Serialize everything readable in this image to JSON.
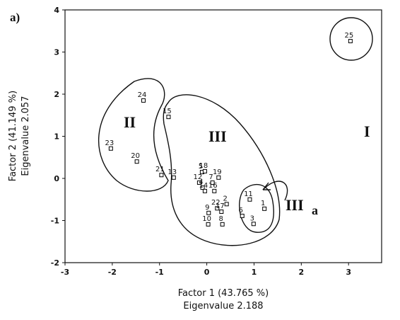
{
  "chart_data": {
    "type": "scatter",
    "panel_label": "a)",
    "x_label": "Factor 1 (43.765 %)",
    "x_label_2": "Eigenvalue 2.188",
    "y_label": "Factor 2 (41.149 %)",
    "y_label_2": "Eigenvalue 2.057",
    "xlim": [
      -3,
      3.7
    ],
    "xticks": [
      -3,
      -2,
      -1,
      0,
      1,
      2,
      3
    ],
    "ylim": [
      -2,
      4
    ],
    "yticks": [
      -2,
      -1,
      0,
      1,
      2,
      3,
      4
    ],
    "color": "#000000",
    "points": [
      {
        "label": "25",
        "x": 3.04,
        "y": 3.26
      },
      {
        "label": "24",
        "x": -1.34,
        "y": 1.85
      },
      {
        "label": "15",
        "x": -0.81,
        "y": 1.46
      },
      {
        "label": "23",
        "x": -2.03,
        "y": 0.71
      },
      {
        "label": "20",
        "x": -1.48,
        "y": 0.4
      },
      {
        "label": "21",
        "x": -0.96,
        "y": 0.08
      },
      {
        "label": "13",
        "x": -0.7,
        "y": 0.02
      },
      {
        "label": "5",
        "x": -0.1,
        "y": 0.15
      },
      {
        "label": "18",
        "x": -0.04,
        "y": 0.17
      },
      {
        "label": "7",
        "x": 0.12,
        "y": -0.1
      },
      {
        "label": "19",
        "x": 0.25,
        "y": 0.02
      },
      {
        "label": "12",
        "x": -0.16,
        "y": -0.1
      },
      {
        "label": "4",
        "x": -0.09,
        "y": -0.22
      },
      {
        "label": "14",
        "x": -0.04,
        "y": -0.3
      },
      {
        "label": "16",
        "x": 0.16,
        "y": -0.3
      },
      {
        "label": "2",
        "x": 0.42,
        "y": -0.61
      },
      {
        "label": "22",
        "x": 0.22,
        "y": -0.71
      },
      {
        "label": "9",
        "x": 0.04,
        "y": -0.82
      },
      {
        "label": "17",
        "x": 0.31,
        "y": -0.79
      },
      {
        "label": "10",
        "x": 0.03,
        "y": -1.09
      },
      {
        "label": "8",
        "x": 0.33,
        "y": -1.09
      },
      {
        "label": "11",
        "x": 0.91,
        "y": -0.5
      },
      {
        "label": "6",
        "x": 0.75,
        "y": -0.89
      },
      {
        "label": "3",
        "x": 0.99,
        "y": -1.08
      },
      {
        "label": "1",
        "x": 1.22,
        "y": -0.72
      }
    ],
    "group_labels": [
      "I",
      "II",
      "III",
      "III"
    ],
    "group_sub": "a"
  }
}
